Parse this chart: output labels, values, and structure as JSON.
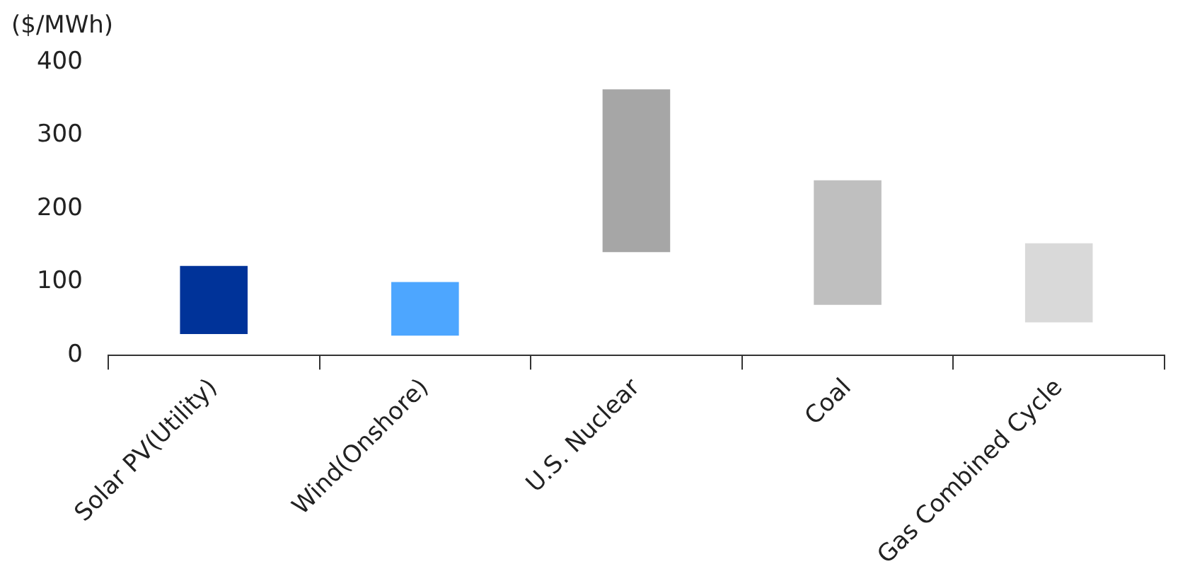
{
  "chart_data": {
    "type": "bar",
    "ylabel": "($/MWh)",
    "categories": [
      "Solar PV(Utility)",
      "Wind(Onshore)",
      "U.S. Nuclear",
      "Coal",
      "Gas Combined Cycle"
    ],
    "base": [
      29,
      27,
      141,
      69,
      45
    ],
    "values": [
      93,
      73,
      222,
      170,
      108
    ],
    "colors": [
      "#003399",
      "#4da6ff",
      "#a6a6a6",
      "#bfbfbf",
      "#d9d9d9"
    ],
    "ylim": [
      0,
      400
    ],
    "yticks": [
      0,
      100,
      200,
      300,
      400
    ],
    "grid": false,
    "legend": false
  }
}
